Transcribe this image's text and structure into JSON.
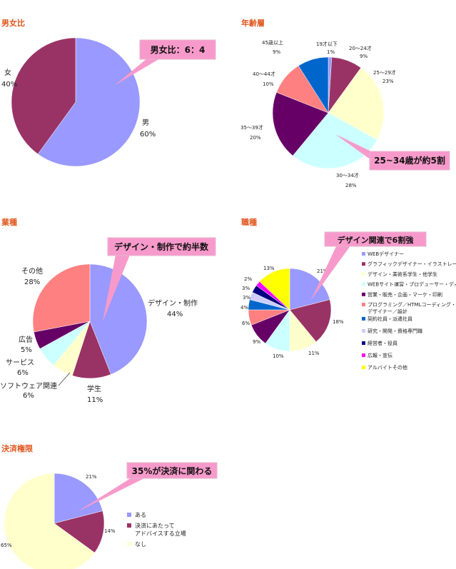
{
  "chart_data": [
    {
      "type": "pie",
      "title": "男女比",
      "categories": [
        "男",
        "女"
      ],
      "values": [
        60,
        40
      ],
      "value_labels": [
        "60%",
        "40%"
      ],
      "colors": [
        "#9999ff",
        "#993366"
      ],
      "callout": "男女比：6：4"
    },
    {
      "type": "pie",
      "title": "年齢層",
      "categories": [
        "19才以下",
        "20～24才",
        "25～29才",
        "30～34才",
        "35～39才",
        "40～44才",
        "45歳以上"
      ],
      "values": [
        1,
        9,
        23,
        28,
        20,
        10,
        9
      ],
      "value_labels": [
        "1%",
        "9%",
        "23%",
        "28%",
        "20%",
        "10%",
        "9%"
      ],
      "colors": [
        "#9999ff",
        "#993366",
        "#ffffcc",
        "#ccffff",
        "#660066",
        "#ff8080",
        "#0066cc"
      ],
      "callout": "25~34歳が約5割"
    },
    {
      "type": "pie",
      "title": "業種",
      "categories": [
        "デザイン・制作",
        "学生",
        "ソフトウェア関連",
        "サービス",
        "広告",
        "その他"
      ],
      "values": [
        44,
        11,
        6,
        6,
        5,
        28
      ],
      "value_labels": [
        "44%",
        "11%",
        "6%",
        "6%",
        "5%",
        "28%"
      ],
      "colors": [
        "#9999ff",
        "#993366",
        "#ffffcc",
        "#ccffff",
        "#660066",
        "#ff8080"
      ],
      "callout": "デザイン・制作で約半数"
    },
    {
      "type": "pie",
      "title": "職種",
      "categories": [
        "WEBデザイナー",
        "グラフィックデザイナー・イラストレーター",
        "デザイン・美術系学生・他学生",
        "WEBサイト運営・プロデューサー・ディレクター",
        "営業・販売・企画・マーケ・印刷",
        "プログラミング／HTMLコーディング・プロダクトデザイナー／設計",
        "契約社員・派遣社員",
        "研究・開発・資格専門職",
        "経営者・役員",
        "広報・宣伝",
        "アルバイトその他"
      ],
      "values": [
        21,
        18,
        11,
        10,
        9,
        6,
        4,
        3,
        3,
        2,
        13
      ],
      "value_labels": [
        "21%",
        "18%",
        "11%",
        "10%",
        "9%",
        "6%",
        "4%",
        "3%",
        "3%",
        "2%",
        "13%"
      ],
      "legend": [
        "WEBデザイナー",
        "グラフィックデザイナー・イラストレーター",
        "デザイン・美術系学生・他学生",
        "WEBサイト運営・プロデューサー・ディレクター",
        "営業・販売・企画・マーケ・印刷",
        "プログラミング／HTMLコーディング・プロダクト",
        "デザイナー／設計",
        "契約社員・派遣社員",
        "研究・開発・資格専門職",
        "経営者・役員",
        "広報・宣伝",
        "アルバイトその他"
      ],
      "colors": [
        "#9999ff",
        "#993366",
        "#ffffcc",
        "#ccffff",
        "#660066",
        "#ff8080",
        "#0066cc",
        "#ccccff",
        "#000080",
        "#ff00ff",
        "#ffff00"
      ],
      "callout": "デザイン関連で6割強"
    },
    {
      "type": "pie",
      "title": "決済権限",
      "categories": [
        "ある",
        "決済にあたって アドバイスする立場",
        "なし"
      ],
      "values": [
        21,
        14,
        65
      ],
      "value_labels": [
        "21%",
        "14%",
        "65%"
      ],
      "legend": [
        "ある",
        "決済にあたって",
        "アドバイスする立場",
        "なし"
      ],
      "colors": [
        "#9999ff",
        "#993366",
        "#ffffcc"
      ],
      "callout": "35%が決済に関わる"
    }
  ]
}
